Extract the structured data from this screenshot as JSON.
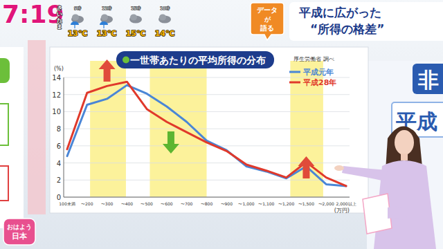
{
  "screen": {
    "clock": "7:19",
    "location": "さいたま",
    "weather": [
      {
        "time": "9時",
        "temp": "13℃"
      },
      {
        "time": "12時",
        "temp": "13℃"
      },
      {
        "time": "15時",
        "temp": "15℃"
      },
      {
        "time": "18時",
        "temp": "14℃"
      }
    ],
    "badge": [
      "データ",
      "が",
      "語る"
    ],
    "headline": [
      "平成に広がった",
      "“所得の格差”"
    ],
    "background_texts": [
      "非",
      "平成"
    ],
    "logo": [
      "おはよう",
      "日本"
    ]
  },
  "chart_data": {
    "type": "line",
    "title": "一世帯あたりの平均所得の分布",
    "annotations": [
      "厚生労働省 調べ"
    ],
    "y_label": "(%)",
    "x_label": "(万円)",
    "categories": [
      "100未満",
      "〜200",
      "〜300",
      "〜400",
      "〜500",
      "〜600",
      "〜700",
      "〜800",
      "〜900",
      "〜1,000",
      "〜1,100",
      "〜1,200",
      "〜1,500",
      "〜2,000",
      "2,000以上"
    ],
    "series": [
      {
        "name": "平成元年",
        "color": "#4a86d6",
        "values": [
          4.8,
          10.8,
          11.5,
          13.1,
          12.1,
          10.6,
          8.8,
          6.6,
          5.5,
          3.6,
          3.0,
          2.2,
          3.6,
          1.5,
          1.3
        ]
      },
      {
        "name": "平成28年",
        "color": "#e0392b",
        "values": [
          5.6,
          12.2,
          13.0,
          13.5,
          10.3,
          8.8,
          7.6,
          6.4,
          5.4,
          3.8,
          3.1,
          2.3,
          4.1,
          2.3,
          1.3
        ]
      }
    ],
    "ylim": [
      0,
      14
    ],
    "yticks": [
      0,
      2,
      4,
      6,
      8,
      10,
      12,
      14
    ],
    "grid": true,
    "legend": "top-right"
  }
}
